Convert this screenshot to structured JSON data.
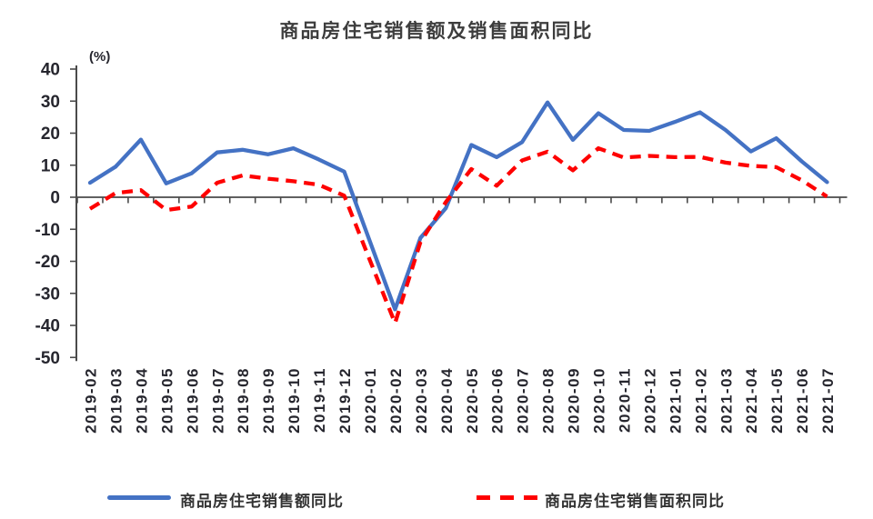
{
  "title": "商品房住宅销售额及销售面积同比",
  "unit_label": "(%)",
  "legend": {
    "value_series_label": "商品房住宅销售额同比",
    "area_series_label": "商品房住宅销售面积同比"
  },
  "colors": {
    "value_series": "#4472C4",
    "area_series": "#FE0000",
    "axis": "#4a4a4a",
    "tick_text": "#26262e",
    "title_text": "#3d3d3d"
  },
  "chart_data": {
    "type": "line",
    "title": "商品房住宅销售额及销售面积同比",
    "ylabel": "(%)",
    "xlabel": "",
    "ylim": [
      -50,
      40
    ],
    "ytick_step": 10,
    "y_tick_labels": [
      "40",
      "30",
      "20",
      "10",
      "0",
      "-10",
      "-20",
      "-30",
      "-40",
      "-50"
    ],
    "grid": false,
    "legend_position": "bottom",
    "categories": [
      "2019-02",
      "2019-03",
      "2019-04",
      "2019-05",
      "2019-06",
      "2019-07",
      "2019-08",
      "2019-09",
      "2019-10",
      "2019-11",
      "2019-12",
      "2020-01",
      "2020-02",
      "2020-03",
      "2020-04",
      "2020-05",
      "2020-06",
      "2020-07",
      "2020-08",
      "2020-09",
      "2020-10",
      "2020-11",
      "2020-12",
      "2021-01",
      "2021-02",
      "2021-03",
      "2021-04",
      "2021-05",
      "2021-06",
      "2021-07"
    ],
    "series": [
      {
        "name": "商品房住宅销售额同比",
        "color": "#4472C4",
        "style": "solid",
        "values": [
          4.5,
          9.5,
          18.0,
          4.3,
          7.5,
          14.0,
          14.8,
          13.4,
          15.3,
          11.8,
          8.0,
          -13.5,
          -35.0,
          -12.7,
          -3.4,
          16.3,
          12.5,
          17.2,
          29.6,
          17.9,
          26.2,
          21.0,
          20.7,
          23.5,
          26.5,
          21.0,
          14.3,
          18.4,
          11.2,
          4.7
        ]
      },
      {
        "name": "商品房住宅销售面积同比",
        "color": "#FE0000",
        "style": "dashed",
        "values": [
          -3.6,
          1.3,
          2.2,
          -4.0,
          -2.9,
          4.5,
          6.8,
          5.8,
          5.0,
          3.9,
          0.5,
          -19.4,
          -39.3,
          -14.0,
          -1.5,
          8.8,
          3.6,
          11.5,
          14.2,
          8.4,
          15.3,
          12.4,
          12.9,
          12.5,
          12.6,
          10.8,
          9.8,
          9.4,
          5.3,
          0.2
        ]
      }
    ]
  }
}
